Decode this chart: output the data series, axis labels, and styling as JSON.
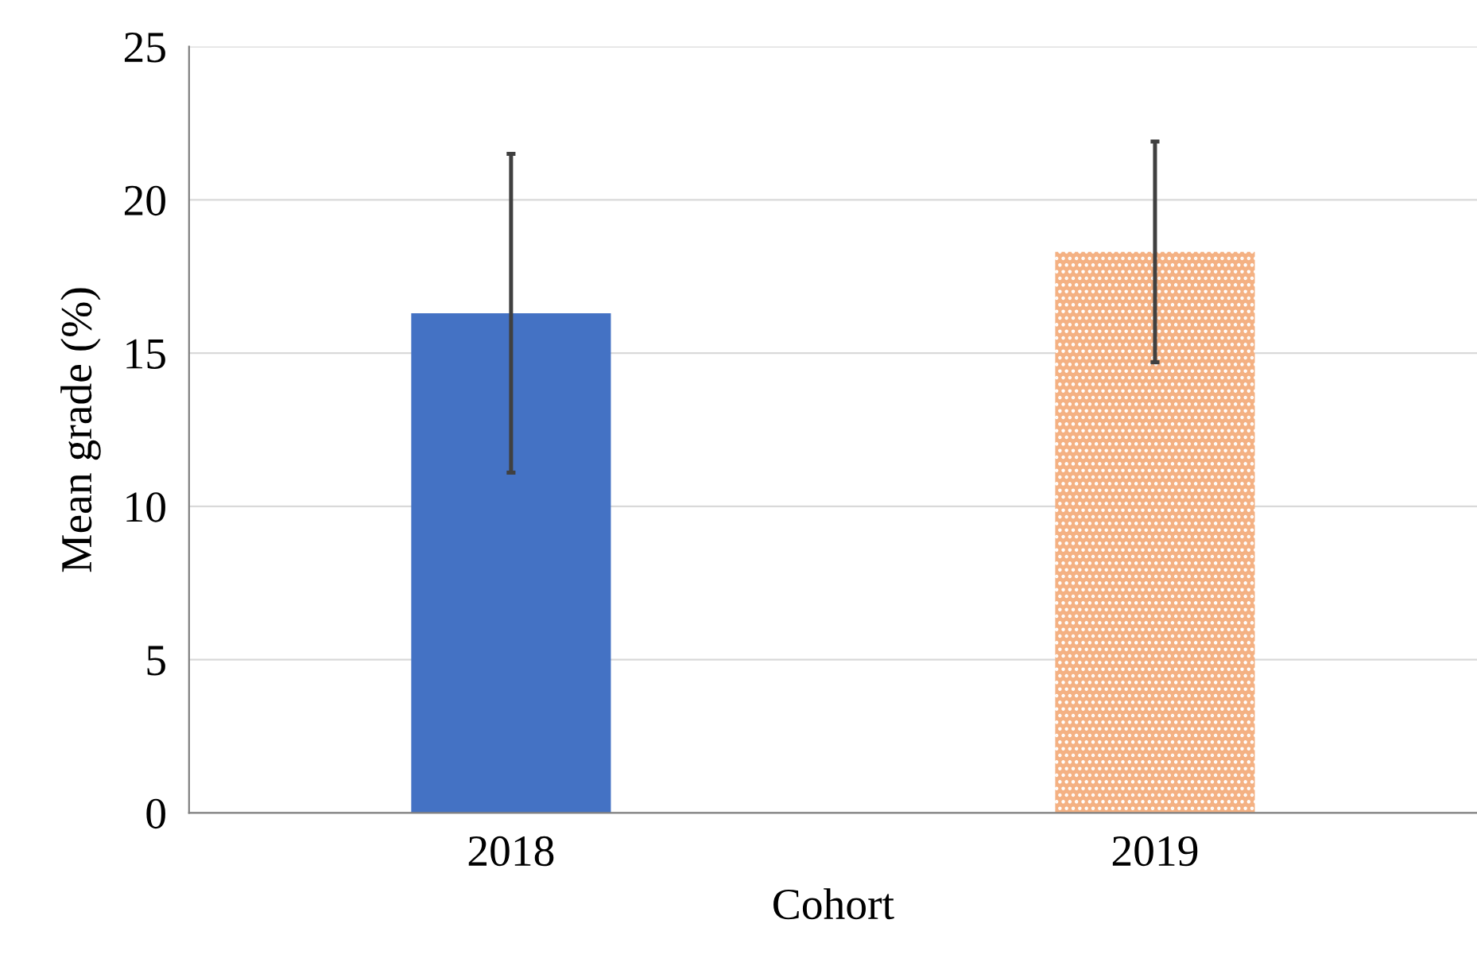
{
  "chart_data": {
    "type": "bar",
    "xlabel": "Cohort",
    "ylabel": "Mean grade (%)",
    "categories": [
      "2018",
      "2019"
    ],
    "values": [
      16.3,
      18.3
    ],
    "errors": [
      5.2,
      3.6
    ],
    "colors": [
      "#4472c4",
      "#f4b183"
    ],
    "ylim": [
      0,
      25
    ],
    "yticks": [
      0,
      5,
      10,
      15,
      20,
      25
    ],
    "grid": "y"
  }
}
